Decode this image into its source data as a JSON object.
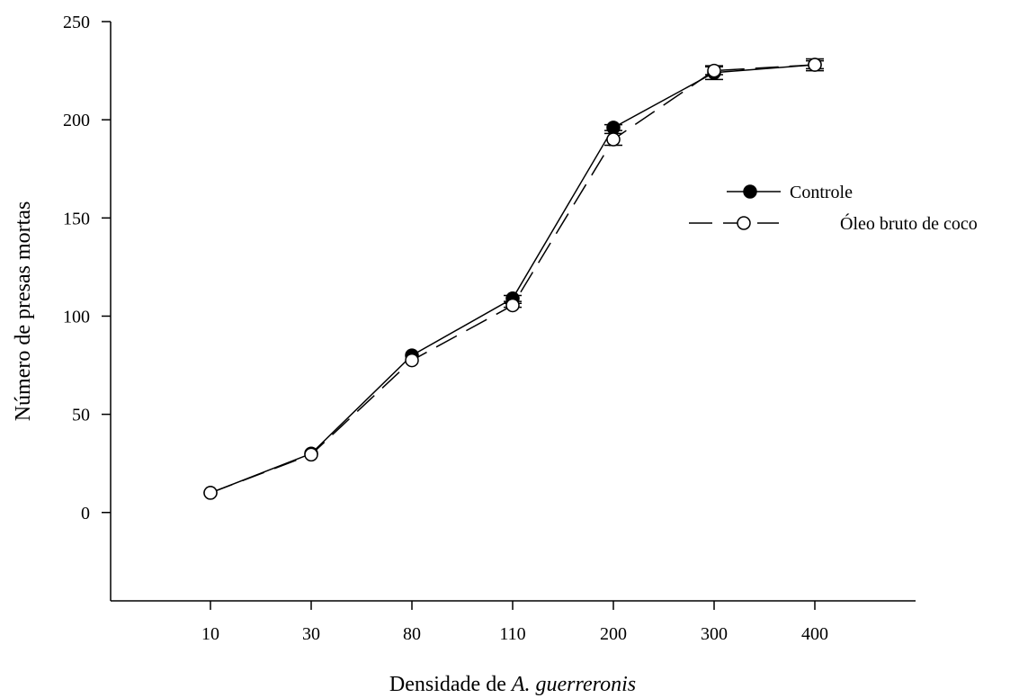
{
  "chart_data": {
    "type": "line",
    "title": "",
    "xlabel_prefix": "Densidade de ",
    "xlabel_species": "A.  guerreronis",
    "ylabel": "Número de presas mortas",
    "categories": [
      "10",
      "30",
      "80",
      "110",
      "200",
      "300",
      "400"
    ],
    "ylim": [
      -45,
      250
    ],
    "yticks": [
      0,
      50,
      100,
      150,
      200,
      250
    ],
    "grid": false,
    "legend_position": "right",
    "series": [
      {
        "name": "Controle",
        "marker": "filled-circle",
        "line_style": "solid",
        "values": [
          10,
          30,
          80,
          109,
          196,
          224,
          228
        ],
        "errors": [
          0,
          0,
          0,
          1.5,
          1.5,
          3.5,
          3
        ]
      },
      {
        "name": "Óleo bruto de coco",
        "marker": "open-circle",
        "line_style": "dashed",
        "values": [
          10,
          29.5,
          77.5,
          105.5,
          190,
          225,
          228
        ],
        "errors": [
          0,
          0,
          0,
          1,
          3,
          2,
          2
        ]
      }
    ]
  }
}
